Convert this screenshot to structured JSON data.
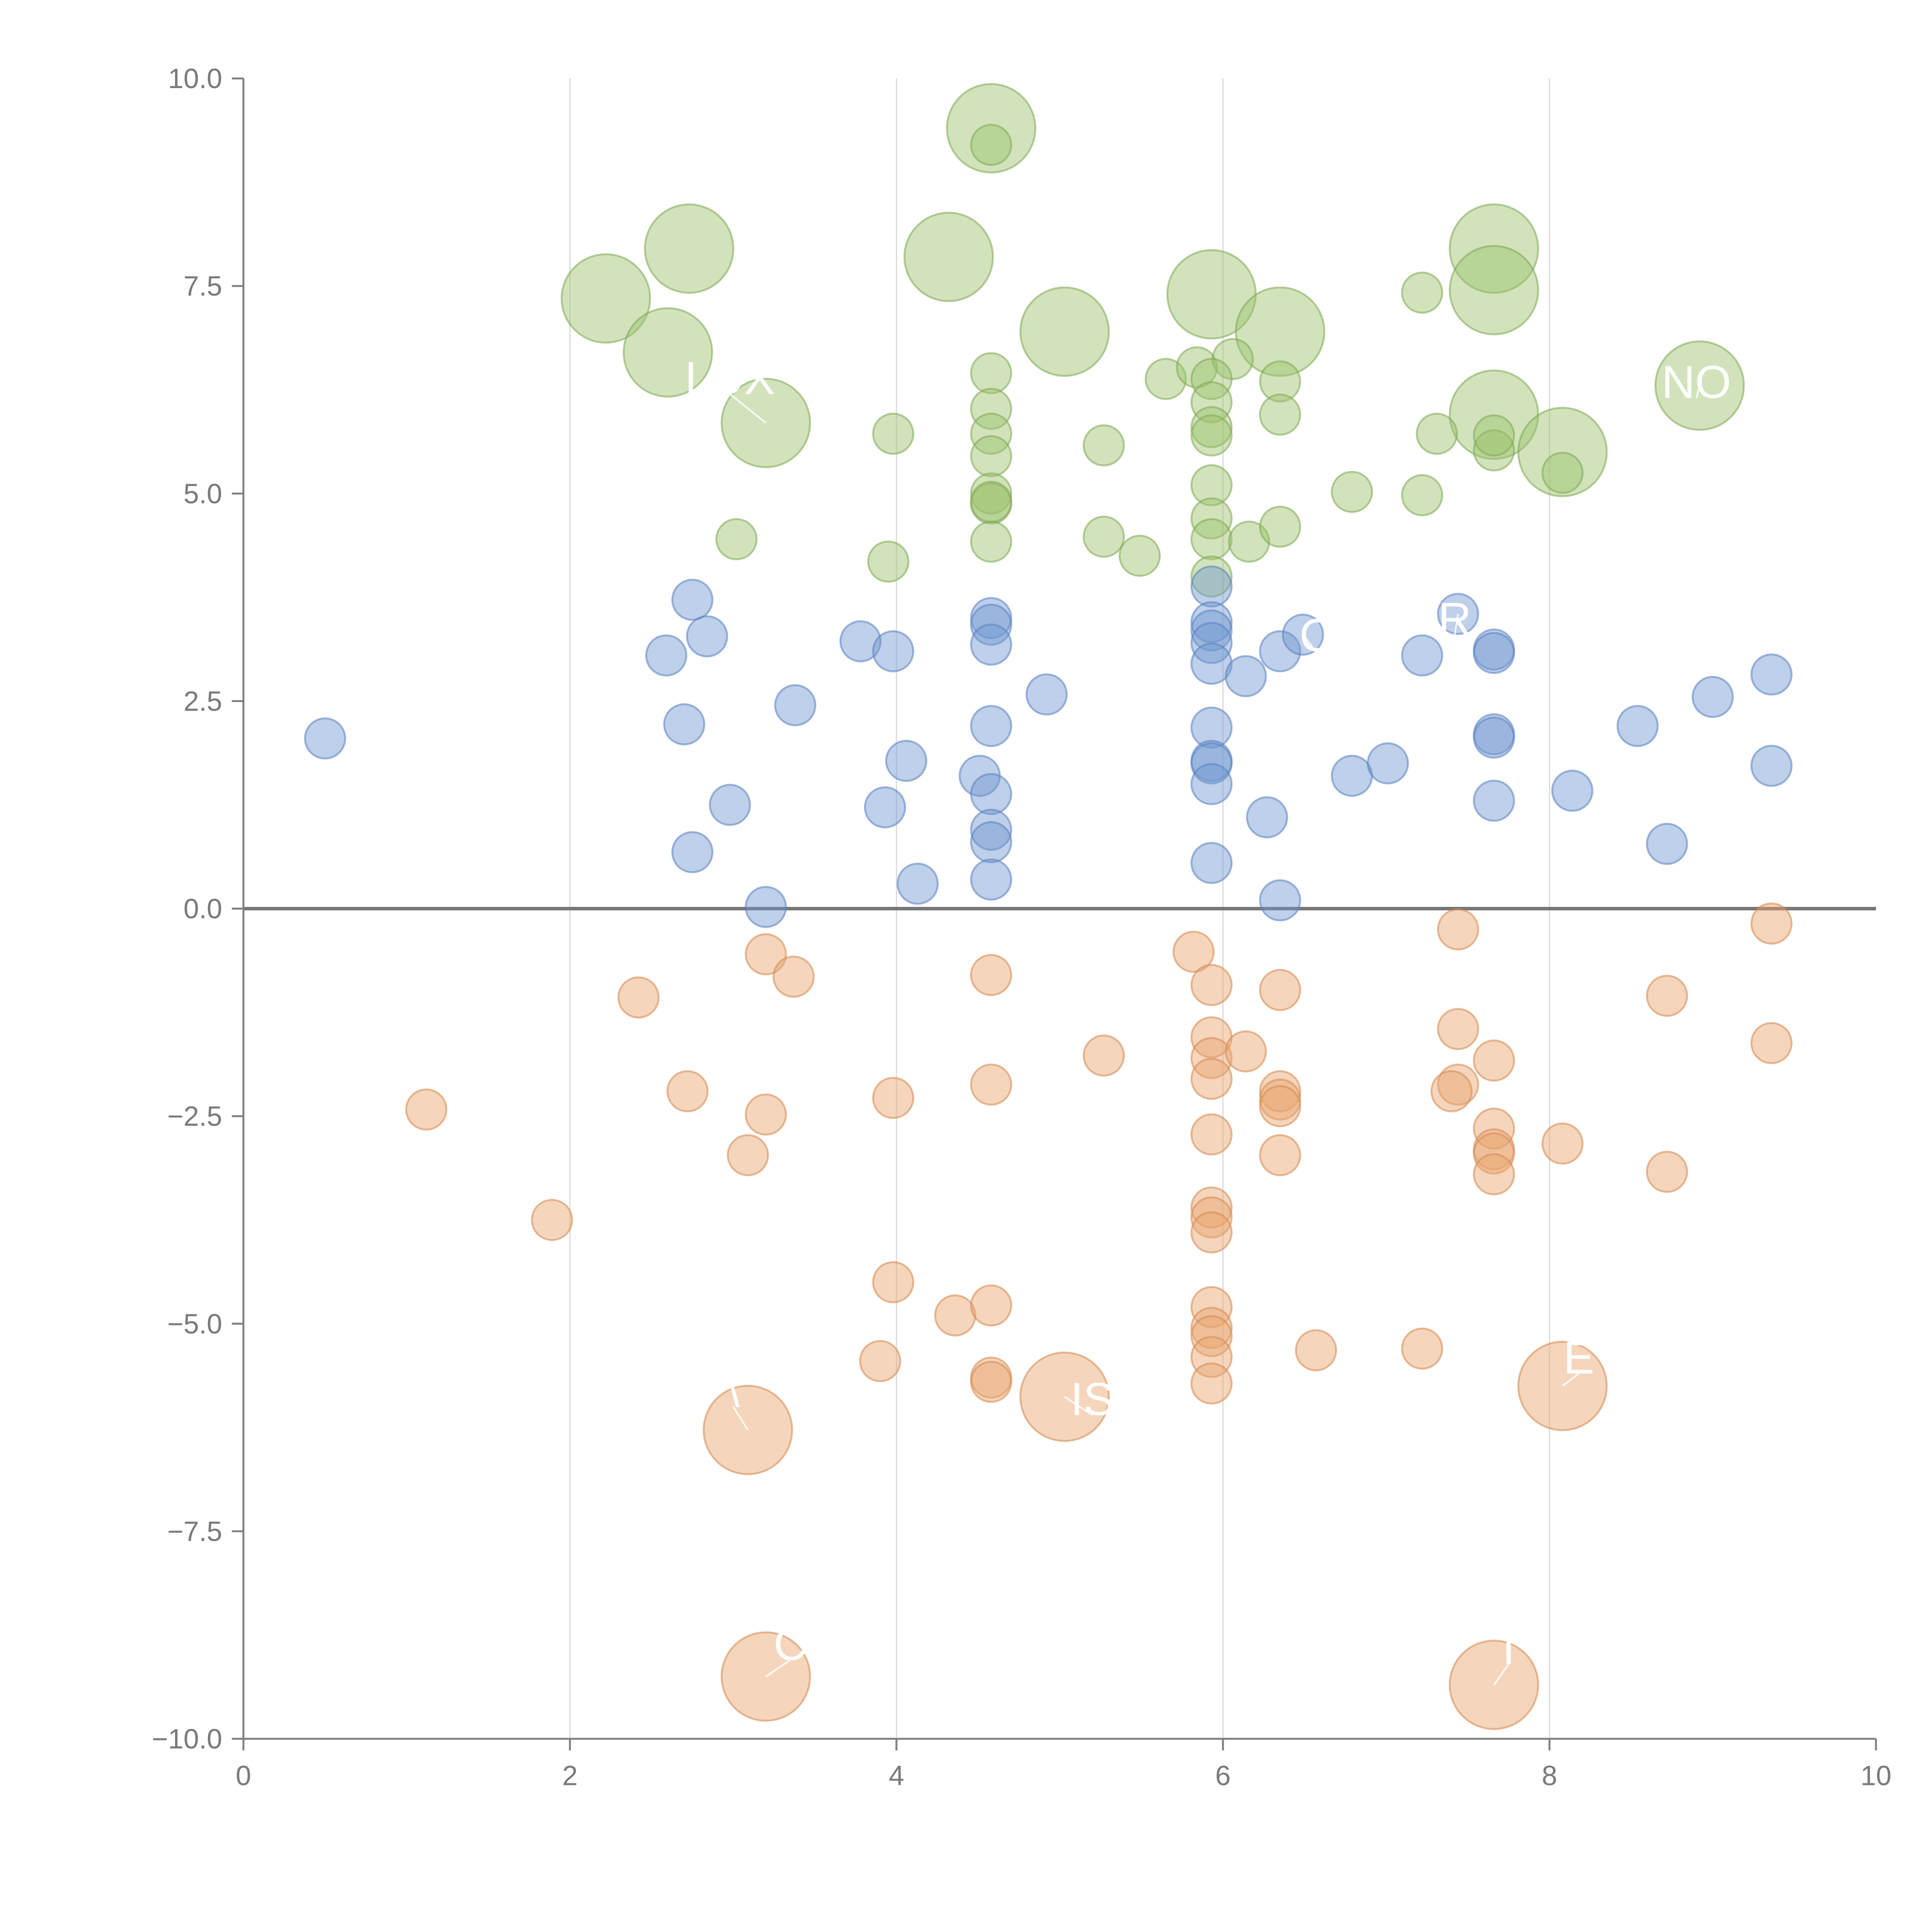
{
  "colors": {
    "green": "#9bc26b",
    "blue": "#6f96d1",
    "orange": "#e8a56c",
    "green_stroke": "#7ea854",
    "blue_stroke": "#5a80bd",
    "orange_stroke": "#d48950",
    "axis": "#808080",
    "grid": "#d9d9d9",
    "tick_text": "#7a7a7a"
  },
  "chart_data": {
    "type": "scatter",
    "subtype": "bubble",
    "title": "",
    "xlabel": "",
    "ylabel": "",
    "xlim": [
      0,
      10
    ],
    "ylim": [
      -10,
      10
    ],
    "grid": "vertical lines at x = 2, 4, 6, 8",
    "zero_line": true,
    "x_ticks": [
      "0",
      "2",
      "4",
      "6",
      "8",
      "10"
    ],
    "y_ticks": [
      "−10.0",
      "−7.5",
      "−5.0",
      "−2.5",
      "0.0",
      "2.5",
      "5.0",
      "7.5",
      "10.0"
    ],
    "x_tick_values": [
      0,
      2,
      4,
      6,
      8,
      10
    ],
    "y_tick_values": [
      -10,
      -7.5,
      -5,
      -2.5,
      0,
      2.5,
      5,
      7.5,
      10
    ],
    "series": [
      {
        "name": "green",
        "color_key": "green",
        "points": [
          [
            4.58,
            9.4,
            "l"
          ],
          [
            4.58,
            9.2,
            "s"
          ],
          [
            2.73,
            7.95,
            "l"
          ],
          [
            4.32,
            7.85,
            "l"
          ],
          [
            2.22,
            7.35,
            "l"
          ],
          [
            5.93,
            7.4,
            "l"
          ],
          [
            6.35,
            6.95,
            "l"
          ],
          [
            5.03,
            6.95,
            "l"
          ],
          [
            2.6,
            6.7,
            "l"
          ],
          [
            7.66,
            7.95,
            "l"
          ],
          [
            7.66,
            7.45,
            "l"
          ],
          [
            7.22,
            7.42,
            "s"
          ],
          [
            8.92,
            6.3,
            "l"
          ],
          [
            3.2,
            5.85,
            "l"
          ],
          [
            7.66,
            5.95,
            "l"
          ],
          [
            8.08,
            5.5,
            "l"
          ],
          [
            3.98,
            5.72,
            "s"
          ],
          [
            4.58,
            6.45,
            "s"
          ],
          [
            4.58,
            6.02,
            "s"
          ],
          [
            4.58,
            5.72,
            "s"
          ],
          [
            4.58,
            5.45,
            "s"
          ],
          [
            4.58,
            5.0,
            "s"
          ],
          [
            4.58,
            4.88,
            "s"
          ],
          [
            4.58,
            4.9,
            "s"
          ],
          [
            4.58,
            4.42,
            "s"
          ],
          [
            5.27,
            5.58,
            "s"
          ],
          [
            5.27,
            4.48,
            "s"
          ],
          [
            5.49,
            4.25,
            "s"
          ],
          [
            5.65,
            6.38,
            "s"
          ],
          [
            5.84,
            6.52,
            "s"
          ],
          [
            6.06,
            6.62,
            "s"
          ],
          [
            5.93,
            6.38,
            "s"
          ],
          [
            5.93,
            6.1,
            "s"
          ],
          [
            5.93,
            5.8,
            "s"
          ],
          [
            5.93,
            5.7,
            "s"
          ],
          [
            5.93,
            5.1,
            "s"
          ],
          [
            5.93,
            4.7,
            "s"
          ],
          [
            5.93,
            4.45,
            "s"
          ],
          [
            5.93,
            4.0,
            "s"
          ],
          [
            6.16,
            4.42,
            "s"
          ],
          [
            6.35,
            6.35,
            "s"
          ],
          [
            6.35,
            5.95,
            "s"
          ],
          [
            6.35,
            4.6,
            "s"
          ],
          [
            6.79,
            5.02,
            "s"
          ],
          [
            7.22,
            4.98,
            "s"
          ],
          [
            7.31,
            5.72,
            "s"
          ],
          [
            7.66,
            5.52,
            "s"
          ],
          [
            7.66,
            5.7,
            "s"
          ],
          [
            8.08,
            5.25,
            "s"
          ],
          [
            3.02,
            4.45,
            "s"
          ],
          [
            3.95,
            4.18,
            "s"
          ]
        ]
      },
      {
        "name": "blue",
        "color_key": "blue",
        "points": [
          [
            0.5,
            2.05,
            "s"
          ],
          [
            2.59,
            3.05,
            "s"
          ],
          [
            2.75,
            3.72,
            "s"
          ],
          [
            2.84,
            3.28,
            "s"
          ],
          [
            2.7,
            2.22,
            "s"
          ],
          [
            3.38,
            2.45,
            "s"
          ],
          [
            2.98,
            1.25,
            "s"
          ],
          [
            2.75,
            0.68,
            "s"
          ],
          [
            3.2,
            0.02,
            "s"
          ],
          [
            3.78,
            3.22,
            "s"
          ],
          [
            3.98,
            3.1,
            "s"
          ],
          [
            4.06,
            1.78,
            "s"
          ],
          [
            3.93,
            1.22,
            "s"
          ],
          [
            4.13,
            0.3,
            "s"
          ],
          [
            4.51,
            1.6,
            "s"
          ],
          [
            4.58,
            3.5,
            "s"
          ],
          [
            4.58,
            3.42,
            "s"
          ],
          [
            4.58,
            3.18,
            "s"
          ],
          [
            4.58,
            2.2,
            "s"
          ],
          [
            4.58,
            1.38,
            "s"
          ],
          [
            4.58,
            0.95,
            "s"
          ],
          [
            4.58,
            0.8,
            "s"
          ],
          [
            4.58,
            0.35,
            "s"
          ],
          [
            4.92,
            2.58,
            "s"
          ],
          [
            5.93,
            3.88,
            "s"
          ],
          [
            5.93,
            3.45,
            "s"
          ],
          [
            5.93,
            3.35,
            "s"
          ],
          [
            5.93,
            3.2,
            "s"
          ],
          [
            5.93,
            2.95,
            "s"
          ],
          [
            5.93,
            2.18,
            "s"
          ],
          [
            5.93,
            1.78,
            "s"
          ],
          [
            5.93,
            1.75,
            "s"
          ],
          [
            5.93,
            1.5,
            "s"
          ],
          [
            5.93,
            0.55,
            "s"
          ],
          [
            6.14,
            2.8,
            "s"
          ],
          [
            6.27,
            1.1,
            "s"
          ],
          [
            6.35,
            3.1,
            "s"
          ],
          [
            6.35,
            0.1,
            "s"
          ],
          [
            6.49,
            3.3,
            "s"
          ],
          [
            6.79,
            1.6,
            "s"
          ],
          [
            7.01,
            1.75,
            "s"
          ],
          [
            7.22,
            3.05,
            "s"
          ],
          [
            7.44,
            3.55,
            "s"
          ],
          [
            7.66,
            3.12,
            "s"
          ],
          [
            7.66,
            3.08,
            "s"
          ],
          [
            7.66,
            2.1,
            "s"
          ],
          [
            7.66,
            2.06,
            "s"
          ],
          [
            7.66,
            1.3,
            "s"
          ],
          [
            8.14,
            1.42,
            "s"
          ],
          [
            8.54,
            2.2,
            "s"
          ],
          [
            8.72,
            0.78,
            "s"
          ],
          [
            9.0,
            2.55,
            "s"
          ],
          [
            9.36,
            2.82,
            "s"
          ],
          [
            9.36,
            1.72,
            "s"
          ]
        ]
      },
      {
        "name": "orange",
        "color_key": "orange",
        "points": [
          [
            1.12,
            -2.42,
            "s"
          ],
          [
            1.89,
            -3.75,
            "s"
          ],
          [
            2.42,
            -1.07,
            "s"
          ],
          [
            2.72,
            -2.2,
            "s"
          ],
          [
            3.2,
            -0.55,
            "s"
          ],
          [
            3.37,
            -0.82,
            "s"
          ],
          [
            3.2,
            -2.48,
            "s"
          ],
          [
            3.09,
            -2.97,
            "s"
          ],
          [
            3.98,
            -2.28,
            "s"
          ],
          [
            3.98,
            -4.5,
            "s"
          ],
          [
            3.9,
            -5.45,
            "s"
          ],
          [
            4.36,
            -4.9,
            "s"
          ],
          [
            4.58,
            -0.8,
            "s"
          ],
          [
            4.58,
            -2.12,
            "s"
          ],
          [
            4.58,
            -4.78,
            "s"
          ],
          [
            4.58,
            -5.65,
            "s"
          ],
          [
            4.58,
            -5.7,
            "s"
          ],
          [
            5.27,
            -1.77,
            "s"
          ],
          [
            5.82,
            -0.52,
            "s"
          ],
          [
            5.93,
            -0.92,
            "s"
          ],
          [
            5.93,
            -1.55,
            "s"
          ],
          [
            5.93,
            -1.8,
            "s"
          ],
          [
            5.93,
            -2.05,
            "s"
          ],
          [
            5.93,
            -2.72,
            "s"
          ],
          [
            5.93,
            -3.6,
            "s"
          ],
          [
            5.93,
            -3.72,
            "s"
          ],
          [
            5.93,
            -3.9,
            "s"
          ],
          [
            5.93,
            -4.8,
            "s"
          ],
          [
            5.93,
            -5.05,
            "s"
          ],
          [
            5.93,
            -5.15,
            "s"
          ],
          [
            5.93,
            -5.4,
            "s"
          ],
          [
            5.93,
            -5.72,
            "s"
          ],
          [
            6.14,
            -1.72,
            "s"
          ],
          [
            6.35,
            -0.98,
            "s"
          ],
          [
            6.35,
            -2.2,
            "s"
          ],
          [
            6.35,
            -2.3,
            "s"
          ],
          [
            6.35,
            -2.38,
            "s"
          ],
          [
            6.35,
            -2.97,
            "s"
          ],
          [
            6.57,
            -5.32,
            "s"
          ],
          [
            7.22,
            -5.3,
            "s"
          ],
          [
            7.44,
            -0.25,
            "s"
          ],
          [
            7.44,
            -1.45,
            "s"
          ],
          [
            7.44,
            -2.12,
            "s"
          ],
          [
            7.4,
            -2.2,
            "s"
          ],
          [
            7.66,
            -1.83,
            "s"
          ],
          [
            7.66,
            -2.65,
            "s"
          ],
          [
            7.66,
            -2.9,
            "s"
          ],
          [
            7.66,
            -2.95,
            "s"
          ],
          [
            7.66,
            -3.2,
            "s"
          ],
          [
            8.08,
            -2.83,
            "s"
          ],
          [
            8.72,
            -1.05,
            "s"
          ],
          [
            8.72,
            -3.17,
            "s"
          ],
          [
            9.36,
            -0.18,
            "s"
          ],
          [
            9.36,
            -1.62,
            "s"
          ],
          [
            3.09,
            -6.28,
            "l"
          ],
          [
            5.03,
            -5.88,
            "l"
          ],
          [
            8.08,
            -5.75,
            "l"
          ],
          [
            3.2,
            -9.25,
            "l"
          ],
          [
            7.66,
            -9.35,
            "l"
          ]
        ]
      }
    ],
    "size_scale": {
      "s": 1,
      "l": 2.2
    },
    "callouts": [
      {
        "text": "LUX",
        "x": 3.2,
        "y": 5.85,
        "tx": 2.98,
        "ty": 6.2
      },
      {
        "text": "NO",
        "x": 8.92,
        "y": 6.3,
        "tx": 8.9,
        "ty": 6.15
      },
      {
        "text": "R",
        "x": 7.44,
        "y": 3.55,
        "tx": 7.42,
        "ty": 3.3
      },
      {
        "text": "C",
        "x": 6.49,
        "y": 3.3,
        "tx": 6.57,
        "ty": 3.1
      },
      {
        "text": "\\",
        "x": 3.09,
        "y": -6.28,
        "tx": 3.0,
        "ty": -6.0
      },
      {
        "text": "IS",
        "x": 5.03,
        "y": -5.88,
        "tx": 5.2,
        "ty": -6.1
      },
      {
        "text": "E",
        "x": 8.08,
        "y": -5.75,
        "tx": 8.18,
        "ty": -5.6
      },
      {
        "text": "C",
        "x": 3.2,
        "y": -9.25,
        "tx": 3.35,
        "ty": -9.05
      },
      {
        "text": "T",
        "x": 7.66,
        "y": -9.35,
        "tx": 7.75,
        "ty": -9.1
      }
    ]
  }
}
